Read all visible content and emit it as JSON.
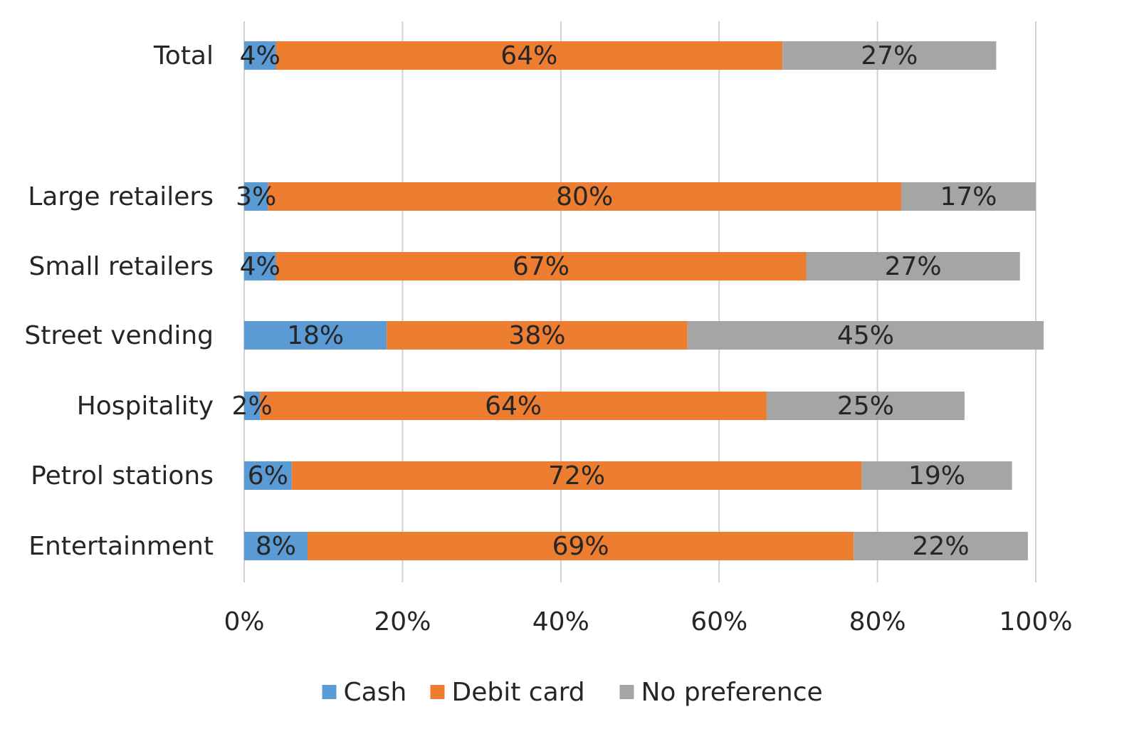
{
  "chart_data": {
    "type": "bar",
    "orientation": "horizontal",
    "stacked": true,
    "categories": [
      "Total",
      "",
      "Large retailers",
      "Small retailers",
      "Street vending",
      "Hospitality",
      "Petrol stations",
      "Entertainment"
    ],
    "series": [
      {
        "name": "Cash",
        "color": "#5B9BD5",
        "values": [
          4,
          null,
          3,
          4,
          18,
          2,
          6,
          8
        ]
      },
      {
        "name": "Debit card",
        "color": "#ED7D31",
        "values": [
          64,
          null,
          80,
          67,
          38,
          64,
          72,
          69
        ]
      },
      {
        "name": "No preference",
        "color": "#A5A5A5",
        "values": [
          27,
          null,
          17,
          27,
          45,
          25,
          19,
          22
        ]
      }
    ],
    "data_labels": [
      [
        "4%",
        "64%",
        "27%"
      ],
      [
        "",
        "",
        ""
      ],
      [
        "3%",
        "80%",
        "17%"
      ],
      [
        "4%",
        "67%",
        "27%"
      ],
      [
        "18%",
        "38%",
        "45%"
      ],
      [
        "2%",
        "64%",
        "25%"
      ],
      [
        "6%",
        "72%",
        "19%"
      ],
      [
        "8%",
        "69%",
        "22%"
      ]
    ],
    "xticks": [
      "0%",
      "20%",
      "40%",
      "60%",
      "80%",
      "100%"
    ],
    "xlim": [
      0,
      100
    ],
    "grid": true,
    "legend": "bottom",
    "title": "",
    "xlabel": "",
    "ylabel": ""
  }
}
